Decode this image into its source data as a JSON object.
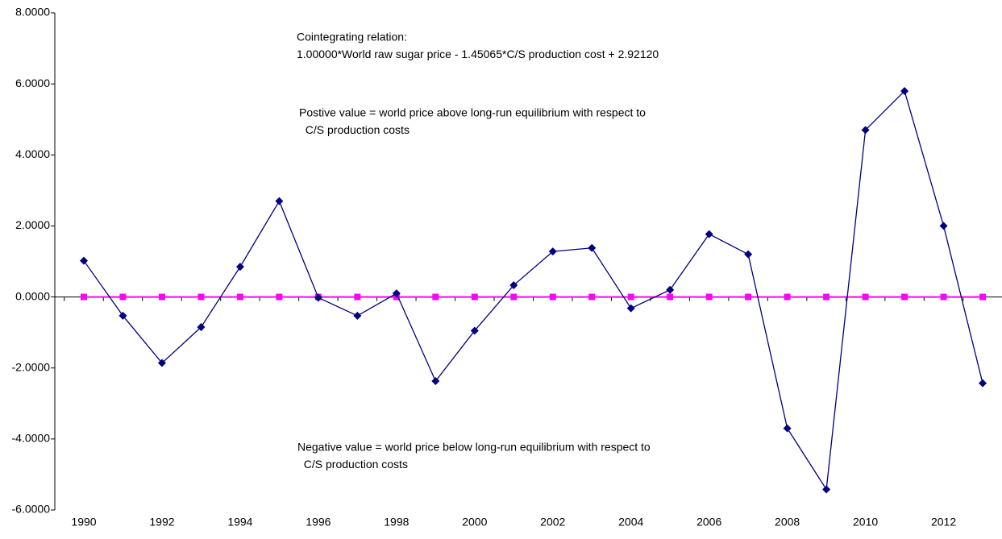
{
  "chart_data": {
    "type": "line",
    "annotations": [
      [
        "Cointegrating relation:",
        "1.00000*World raw sugar price - 1.45065*C/S production cost + 2.92120"
      ],
      [
        "Postive value = world price above long-run equilibrium with respect to",
        "  C/S production costs"
      ],
      [
        "Negative value = world price below long-run equilibrium with respect to",
        "  C/S production costs"
      ]
    ],
    "categories": [
      "1990",
      null,
      "1992",
      null,
      "1994",
      null,
      "1996",
      null,
      "1998",
      null,
      "2000",
      null,
      "2002",
      null,
      "2004",
      null,
      "2006",
      null,
      "2008",
      null,
      "2010",
      null,
      "2012",
      null
    ],
    "series": [
      {
        "color": "#000080",
        "marker": "diamond",
        "values": [
          1.02,
          -0.53,
          -1.86,
          -0.85,
          0.85,
          2.7,
          -0.02,
          -0.53,
          0.1,
          -2.37,
          -0.95,
          0.33,
          1.28,
          1.38,
          -0.32,
          0.2,
          1.77,
          1.2,
          -3.7,
          -5.42,
          4.7,
          5.8,
          2.0,
          -2.43
        ]
      },
      {
        "color": "#ff00ff",
        "marker": "square",
        "values": [
          0,
          0,
          0,
          0,
          0,
          0,
          0,
          0,
          0,
          0,
          0,
          0,
          0,
          0,
          0,
          0,
          0,
          0,
          0,
          0,
          0,
          0,
          0,
          0
        ]
      }
    ],
    "ylim": [
      -6,
      8
    ],
    "yticks": [
      {
        "value": -6,
        "label": "-6.0000"
      },
      {
        "value": -4,
        "label": "-4.0000"
      },
      {
        "value": -2,
        "label": "-2.0000"
      },
      {
        "value": 0,
        "label": "0.0000"
      },
      {
        "value": 2,
        "label": "2.0000"
      },
      {
        "value": 4,
        "label": "4.0000"
      },
      {
        "value": 6,
        "label": "6.0000"
      },
      {
        "value": 8,
        "label": "8.0000"
      }
    ],
    "grid": false
  }
}
